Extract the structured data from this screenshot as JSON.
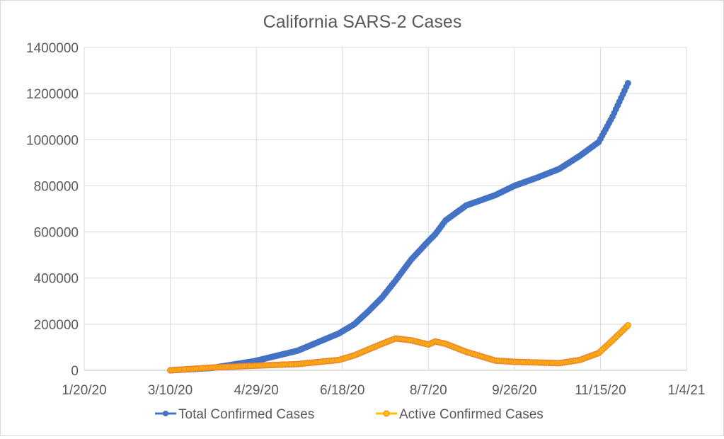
{
  "chart_data": {
    "type": "line",
    "title": "California SARS-2 Cases",
    "xlabel": "",
    "ylabel": "",
    "x_tick_labels": [
      "1/20/20",
      "3/10/20",
      "4/29/20",
      "6/18/20",
      "8/7/20",
      "9/26/20",
      "11/15/20",
      "1/4/21"
    ],
    "y_tick_labels": [
      "0",
      "200000",
      "400000",
      "600000",
      "800000",
      "1000000",
      "1200000",
      "1400000"
    ],
    "xlim_days_since_2020_01_20": [
      0,
      350
    ],
    "ylim": [
      0,
      1400000
    ],
    "grid": true,
    "legend_position": "bottom",
    "x_days_since_2020_01_20": [
      50,
      74,
      99,
      124,
      148,
      157,
      165,
      173,
      181,
      190,
      200,
      204,
      210,
      222,
      239,
      250,
      263,
      276,
      288,
      299,
      307,
      316
    ],
    "series": [
      {
        "name": "Total Confirmed Cases",
        "color": "#4472C4",
        "values": [
          0,
          10000,
          40000,
          85000,
          160000,
          200000,
          255000,
          315000,
          390000,
          480000,
          560000,
          590000,
          650000,
          715000,
          760000,
          800000,
          835000,
          873000,
          930000,
          990000,
          1100000,
          1245000
        ]
      },
      {
        "name": "Active Confirmed Cases",
        "color": "#ED7D31",
        "marker_fill": "#FFC000",
        "values": [
          0,
          12000,
          20000,
          27000,
          45000,
          65000,
          90000,
          115000,
          138000,
          130000,
          112000,
          125000,
          115000,
          80000,
          42000,
          37000,
          34000,
          31000,
          45000,
          75000,
          130000,
          195000
        ]
      }
    ]
  }
}
